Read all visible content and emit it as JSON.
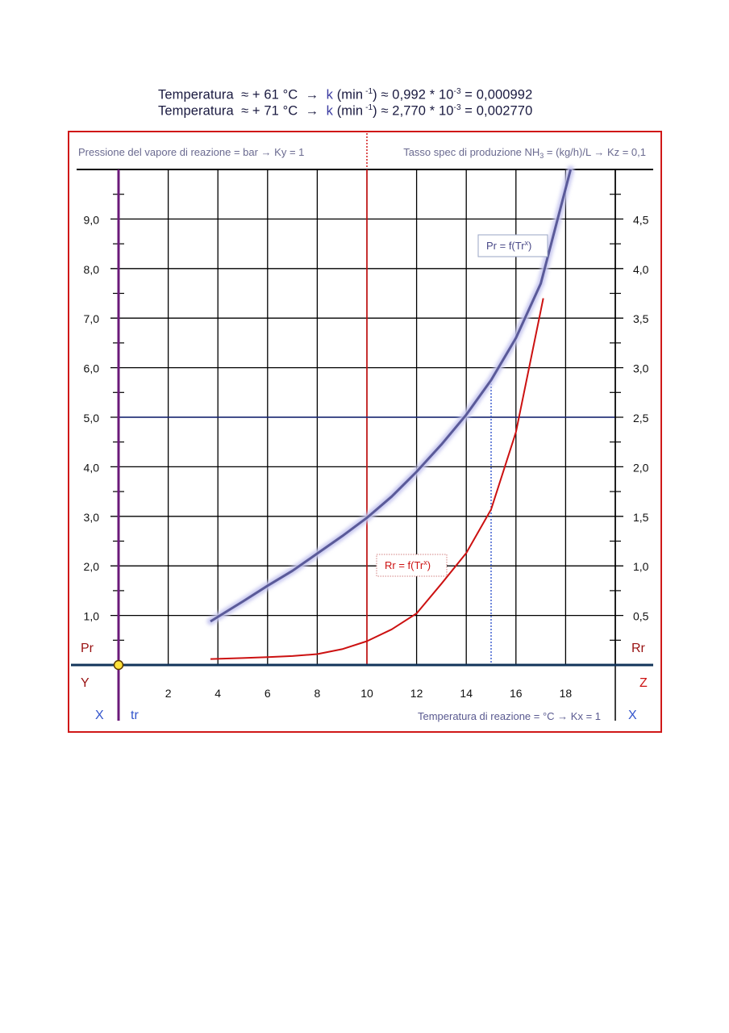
{
  "header": {
    "line1": {
      "a": "Temperatura  ≈ + 61 °C  →  ",
      "k": "k",
      "b": " (min",
      "b_sup": " -1",
      "c": ") ≈ 0,992 * 10",
      "c_sup": "-3",
      "d": " = 0,000992"
    },
    "line2": {
      "a": "Temperatura  ≈ + 71 °C  →  ",
      "k": "k",
      "b": " (min",
      "b_sup": " -1",
      "c": ") ≈ 2,770 * 10",
      "c_sup": "-3",
      "d": " = 0,002770"
    }
  },
  "chart_data": {
    "type": "line",
    "top_left_note": "Pressione del vapore di reazione = bar → Ky = 1",
    "top_right_note_pre": "Tasso spec di produzione NH",
    "top_right_note_sub": "3",
    "top_right_note_post": " = (kg/h)/L → Kz = 0,1",
    "bottom_note": "Temperatura di reazione = °C → Kx = 1",
    "xlim": [
      0,
      20
    ],
    "ylim_left": [
      0,
      10
    ],
    "ylim_right": [
      0,
      5
    ],
    "x_ticks": [
      "2",
      "4",
      "6",
      "8",
      "10",
      "12",
      "14",
      "16",
      "18"
    ],
    "y_left_ticks": [
      "1,0",
      "2,0",
      "3,0",
      "4,0",
      "5,0",
      "6,0",
      "7,0",
      "8,0",
      "9,0"
    ],
    "y_right_ticks": [
      "0,5",
      "1,0",
      "1,5",
      "2,0",
      "2,5",
      "3,0",
      "3,5",
      "4,0",
      "4,5"
    ],
    "axis_labels": {
      "left_series": "Pr",
      "right_series": "Rr",
      "left_axis": "Y",
      "right_axis": "Z",
      "x_left": "X",
      "x_right": "X",
      "origin_label": "tr"
    },
    "grid": true,
    "series": [
      {
        "name": "Pr = f(Tr",
        "name_sup": "x",
        "name_post": ")",
        "axis": "left",
        "color": "#5a5a99",
        "x": [
          3.7,
          5,
          6,
          7,
          8,
          9,
          10,
          11,
          12,
          13,
          14,
          15,
          16,
          17,
          18.2
        ],
        "y": [
          0.88,
          1.28,
          1.6,
          1.9,
          2.25,
          2.6,
          2.97,
          3.4,
          3.9,
          4.45,
          5.05,
          5.75,
          6.6,
          7.7,
          10.0
        ]
      },
      {
        "name": "Rr = f(Tr",
        "name_sup": "x",
        "name_post": ")",
        "axis": "right",
        "color": "#cc1111",
        "x": [
          3.7,
          5,
          6,
          7,
          8,
          9,
          10,
          11,
          12,
          13,
          14,
          15,
          16,
          17.1
        ],
        "y": [
          0.06,
          0.07,
          0.08,
          0.09,
          0.11,
          0.16,
          0.24,
          0.36,
          0.52,
          0.82,
          1.13,
          1.57,
          2.35,
          3.7
        ]
      }
    ],
    "reference_lines": [
      {
        "type": "vertical",
        "x": 10,
        "color": "#cc1111"
      },
      {
        "type": "horizontal",
        "y_left": 5.0,
        "color": "#1a2a7a"
      },
      {
        "type": "dotted-vertical",
        "x": 15,
        "color": "#3355cc"
      }
    ]
  }
}
